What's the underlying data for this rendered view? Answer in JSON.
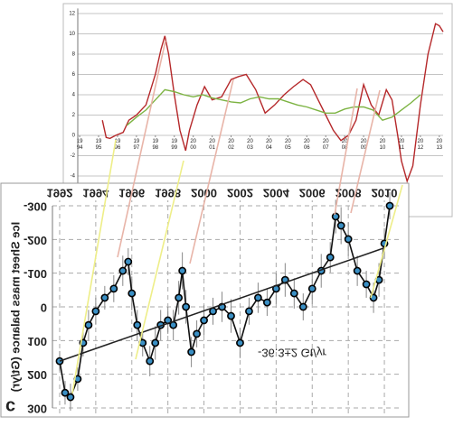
{
  "chart_data": [
    {
      "type": "line",
      "xlim": [
        1993.9,
        2013.2
      ],
      "xticks": [
        {
          "value": 1994,
          "label": "19 94"
        },
        {
          "value": 1995,
          "label": "19 95"
        },
        {
          "value": 1996,
          "label": "19 96"
        },
        {
          "value": 1997,
          "label": "19 97"
        },
        {
          "value": 1998,
          "label": "19 98"
        },
        {
          "value": 1999,
          "label": "19 99"
        },
        {
          "value": 2000,
          "label": "20 00"
        },
        {
          "value": 2001,
          "label": "20 01"
        },
        {
          "value": 2002,
          "label": "20 02"
        },
        {
          "value": 2003,
          "label": "20 03"
        },
        {
          "value": 2004,
          "label": "20 04"
        },
        {
          "value": 2005,
          "label": "20 05"
        },
        {
          "value": 2006,
          "label": "20 06"
        },
        {
          "value": 2007,
          "label": "20 07"
        },
        {
          "value": 2008,
          "label": "20 08"
        },
        {
          "value": 2009,
          "label": "20 09"
        },
        {
          "value": 2010,
          "label": "20 10"
        },
        {
          "value": 2011,
          "label": "20 11"
        },
        {
          "value": 2012,
          "label": "20 12"
        },
        {
          "value": 2013,
          "label": "20 13"
        }
      ],
      "ylim": [
        -5.5,
        12.5
      ],
      "yticks": [
        -4,
        -2,
        0,
        2,
        4,
        6,
        8,
        10,
        12
      ],
      "grid": true,
      "series": [
        {
          "color": "#b5282a",
          "x": [
            1995.2,
            1995.4,
            1995.6,
            1995.9,
            1996.3,
            1996.6,
            1997.0,
            1997.5,
            1998.0,
            1998.3,
            1998.5,
            1998.7,
            1999.0,
            1999.3,
            1999.6,
            1999.8,
            2000.2,
            2000.6,
            2001.0,
            2001.5,
            2002.0,
            2002.4,
            2002.8,
            2003.3,
            2003.8,
            2004.3,
            2004.8,
            2005.3,
            2005.8,
            2006.2,
            2006.6,
            2007.0,
            2007.4,
            2007.8,
            2008.2,
            2008.6,
            2009.0,
            2009.4,
            2009.8,
            2010.2,
            2010.5,
            2010.8,
            2011.0,
            2011.3,
            2011.6,
            2012.0,
            2012.4,
            2012.8,
            2013.0,
            2013.2
          ],
          "values": [
            1.5,
            -0.2,
            -0.3,
            0,
            0.3,
            1.5,
            2,
            3,
            6,
            8.5,
            9.8,
            8,
            4,
            0.5,
            -1.5,
            0.5,
            3,
            4.8,
            3.5,
            3.8,
            5.5,
            5.8,
            6,
            4.5,
            2.2,
            3,
            4,
            4.8,
            5.5,
            5,
            3.5,
            2,
            0.5,
            -0.5,
            0,
            1.5,
            5,
            3,
            2,
            4.5,
            3.5,
            0,
            -2.5,
            -4.5,
            -3,
            3,
            8,
            11,
            10.8,
            10.2
          ]
        },
        {
          "color": "#7cb342",
          "x": [
            1996.5,
            1997.0,
            1997.5,
            1998.0,
            1998.5,
            1999.0,
            1999.5,
            2000.0,
            2000.5,
            2001.0,
            2001.5,
            2002.0,
            2002.5,
            2003.0,
            2003.5,
            2004.0,
            2004.5,
            2005.0,
            2005.5,
            2006.0,
            2006.5,
            2007.0,
            2007.5,
            2008.0,
            2008.5,
            2009.0,
            2009.5,
            2010.0,
            2010.5,
            2011.0,
            2011.5,
            2012.0
          ],
          "values": [
            1,
            1.8,
            2.5,
            3.5,
            4.5,
            4.3,
            4,
            3.8,
            4,
            3.7,
            3.5,
            3.3,
            3.2,
            3.6,
            3.8,
            3.6,
            3.6,
            3.3,
            3,
            2.8,
            2.5,
            2.2,
            2.2,
            2.6,
            2.8,
            2.8,
            2.5,
            1.5,
            1.8,
            2.5,
            3.2,
            4
          ]
        }
      ]
    },
    {
      "type": "line",
      "panel_label": "c",
      "y_label": "Ice Sheet mass balance (Gt/yr)",
      "annotation": "-36.3±2 Gt/yr",
      "xlim": [
        1991.6,
        2011
      ],
      "xticks": [
        1992,
        1994,
        1996,
        1998,
        2000,
        2002,
        2004,
        2006,
        2008,
        2010
      ],
      "ylim": [
        -300,
        300
      ],
      "yticks": [
        -300,
        -200,
        -100,
        0,
        100,
        200,
        300
      ],
      "grid": true,
      "markers": true,
      "series": [
        {
          "color": "#111111",
          "marker_color": "#3a8fc4",
          "x": [
            1992.0,
            1992.3,
            1992.6,
            1993.0,
            1993.3,
            1993.6,
            1994.0,
            1994.5,
            1995.0,
            1995.5,
            1995.8,
            1996.0,
            1996.3,
            1996.6,
            1997.0,
            1997.3,
            1997.6,
            1998.0,
            1998.3,
            1998.6,
            1998.8,
            1999.0,
            1999.3,
            1999.6,
            2000.0,
            2000.5,
            2001.0,
            2001.5,
            2002.0,
            2002.5,
            2003.0,
            2003.5,
            2004.0,
            2004.5,
            2005.0,
            2005.5,
            2006.0,
            2006.5,
            2007.0,
            2007.3,
            2007.6,
            2008.0,
            2008.5,
            2009.0,
            2009.4,
            2009.7,
            2010.0,
            2010.3
          ],
          "values": [
            161,
            255,
            268,
            214,
            107,
            54,
            13,
            -27,
            -54,
            -107,
            -134,
            -40,
            54,
            107,
            161,
            107,
            54,
            40,
            54,
            -27,
            -107,
            0,
            134,
            80,
            40,
            13,
            0,
            27,
            107,
            13,
            -27,
            -13,
            -54,
            -80,
            -40,
            0,
            -54,
            -107,
            -147,
            -268,
            -241,
            -201,
            -107,
            -67,
            -27,
            -80,
            -188,
            -300
          ],
          "errors": [
            30,
            35,
            40,
            35,
            40,
            45,
            40,
            35,
            40,
            45,
            40,
            50,
            45,
            40,
            45,
            50,
            45,
            40,
            45,
            50,
            55,
            50,
            45,
            40,
            45,
            40,
            45,
            50,
            45,
            40,
            45,
            40,
            45,
            50,
            45,
            40,
            45,
            50,
            45,
            50,
            55,
            50,
            45,
            40,
            45,
            50,
            45,
            40
          ]
        }
      ],
      "trend": {
        "color": "#222222",
        "x": [
          1992,
          2010
        ],
        "values": [
          161,
          -175
        ]
      }
    }
  ]
}
